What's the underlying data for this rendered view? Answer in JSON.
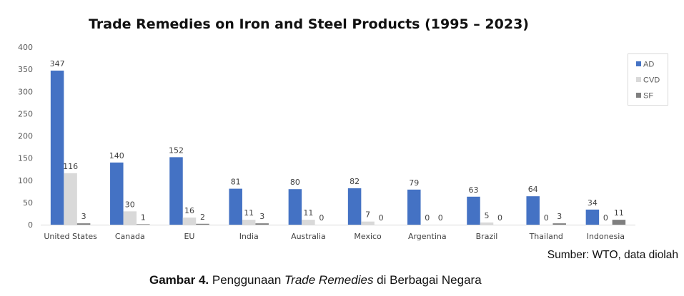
{
  "chart_data": {
    "type": "bar",
    "title": "Trade Remedies on Iron and Steel Products (1995 – 2023)",
    "xlabel": "",
    "ylabel": "",
    "ylim": [
      0,
      400
    ],
    "yticks": [
      "0",
      "50",
      "100",
      "150",
      "200",
      "250",
      "300",
      "350",
      "400"
    ],
    "grid": false,
    "legend_position": "right",
    "categories": [
      "United States",
      "Canada",
      "EU",
      "India",
      "Australia",
      "Mexico",
      "Argentina",
      "Brazil",
      "Thailand",
      "Indonesia"
    ],
    "series": [
      {
        "name": "AD",
        "color": "#4472C4",
        "values": [
          347,
          140,
          152,
          81,
          80,
          82,
          79,
          63,
          64,
          34
        ]
      },
      {
        "name": "CVD",
        "color": "#D9D9D9",
        "values": [
          116,
          30,
          16,
          11,
          11,
          7,
          0,
          5,
          0,
          0
        ]
      },
      {
        "name": "SF",
        "color": "#7F7F7F",
        "values": [
          3,
          1,
          2,
          3,
          0,
          0,
          0,
          0,
          3,
          11
        ]
      }
    ]
  },
  "source_note": "Sumber: WTO, data diolah",
  "caption": {
    "label": "Gambar 4.",
    "text_before": " Penggunaan ",
    "italic": "Trade Remedies",
    "text_after": " di Berbagai Negara"
  }
}
